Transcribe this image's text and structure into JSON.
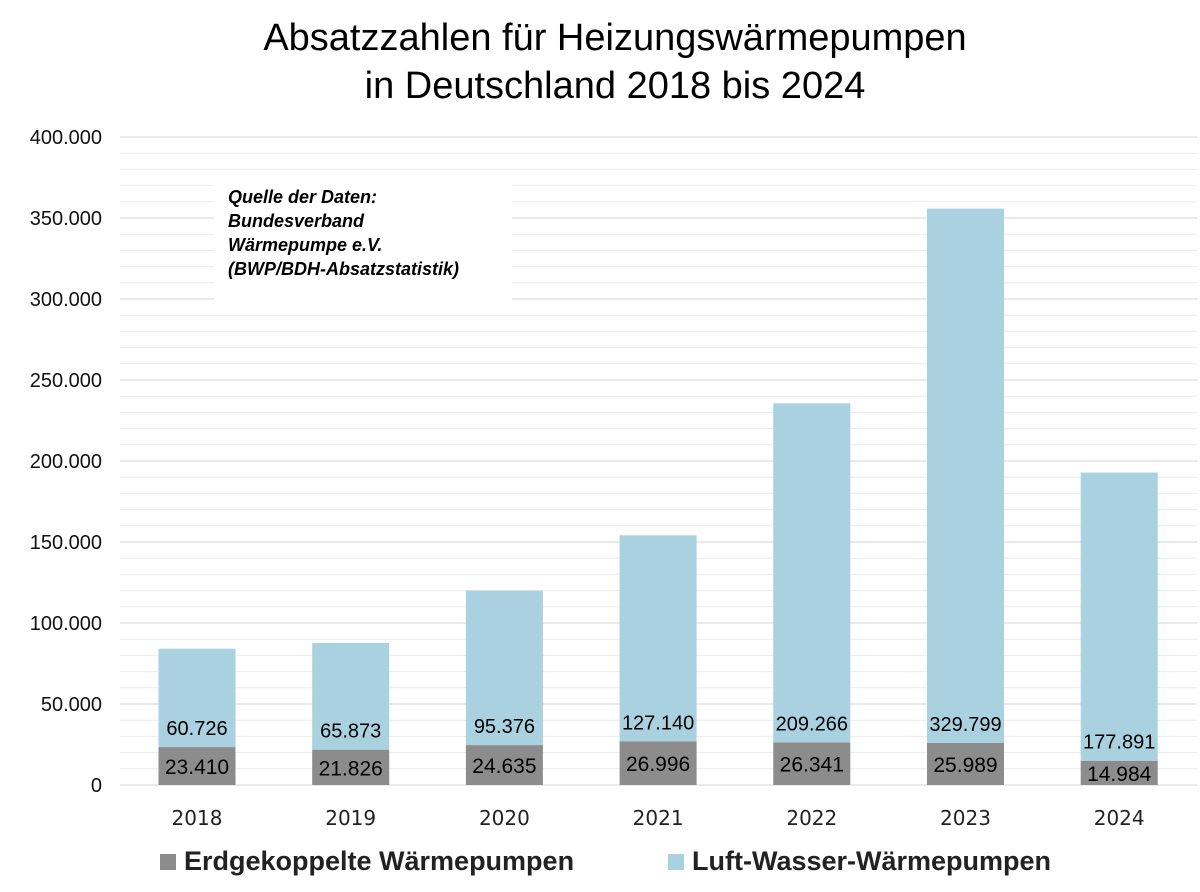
{
  "chart_data": {
    "type": "bar",
    "stacked": true,
    "title": [
      "Absatzzahlen für Heizungswärmepumpen",
      "in Deutschland 2018 bis 2024"
    ],
    "categories": [
      "2018",
      "2019",
      "2020",
      "2021",
      "2022",
      "2023",
      "2024"
    ],
    "series": [
      {
        "name": "Erdgekoppelte Wärmepumpen",
        "color": "#8c8c8c",
        "values": [
          23410,
          21826,
          24635,
          26996,
          26341,
          25989,
          14984
        ],
        "labels": [
          "23.410",
          "21.826",
          "24.635",
          "26.996",
          "26.341",
          "25.989",
          "14.984"
        ]
      },
      {
        "name": "Luft-Wasser-Wärmepumpen",
        "color": "#a9d1e0",
        "values": [
          60726,
          65873,
          95376,
          127140,
          209266,
          329799,
          177891
        ],
        "labels": [
          "60.726",
          "65.873",
          "95.376",
          "127.140",
          "209.266",
          "329.799",
          "177.891"
        ]
      }
    ],
    "ylim": [
      0,
      400000
    ],
    "yticks": [
      0,
      50000,
      100000,
      150000,
      200000,
      250000,
      300000,
      350000,
      400000
    ],
    "ytick_labels": [
      "0",
      "50.000",
      "100.000",
      "150.000",
      "200.000",
      "250.000",
      "300.000",
      "350.000",
      "400.000"
    ],
    "grid": true,
    "legend_position": "bottom",
    "annotation": [
      "Quelle der Daten:",
      "Bundesverband",
      "Wärmepumpe e.V.",
      "(BWP/BDH-Absatzstatistik)"
    ]
  }
}
